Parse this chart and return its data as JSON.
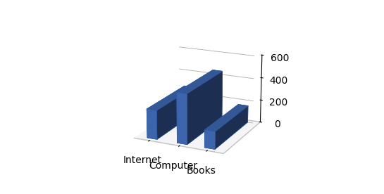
{
  "categories": [
    "Internet",
    "Computer",
    "Books"
  ],
  "values": [
    250,
    430,
    150
  ],
  "bar_color": "#4472C4",
  "ylim": [
    0,
    600
  ],
  "yticks": [
    0,
    200,
    400,
    600
  ],
  "background_color": "#ffffff",
  "bar_width": 0.6,
  "bar_depth": 0.4,
  "figsize": [
    5.45,
    2.76
  ],
  "dpi": 100,
  "elev": 18,
  "azim": -65
}
